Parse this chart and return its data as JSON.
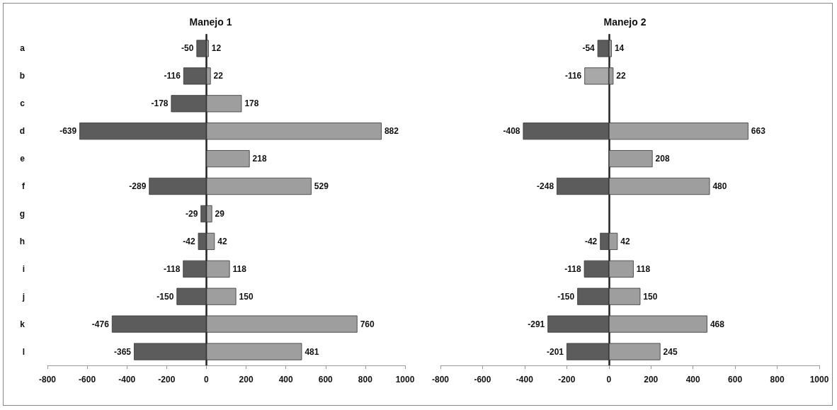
{
  "chart_data": [
    {
      "type": "bar",
      "title": "Manejo 1",
      "orientation": "horizontal",
      "stacked": true,
      "data_labels": true,
      "categories": [
        "a",
        "b",
        "c",
        "d",
        "e",
        "f",
        "g",
        "h",
        "i",
        "j",
        "k",
        "l"
      ],
      "series": [
        {
          "color": "#5c5c5c",
          "values": [
            -50,
            -116,
            -178,
            -639,
            null,
            -289,
            -29,
            -42,
            -118,
            -150,
            -476,
            -365
          ]
        },
        {
          "color": "#9e9e9e",
          "values": [
            12,
            22,
            178,
            882,
            218,
            529,
            29,
            42,
            118,
            150,
            760,
            481
          ]
        }
      ],
      "xlim": [
        -800,
        1000
      ],
      "xticks": [
        -800,
        -600,
        -400,
        -200,
        0,
        200,
        400,
        600,
        800,
        1000
      ]
    },
    {
      "type": "bar",
      "title": "Manejo 2",
      "orientation": "horizontal",
      "stacked": true,
      "data_labels": true,
      "tick_labels": "x",
      "categories": [
        null,
        null,
        null,
        null,
        null,
        null,
        null,
        null,
        null,
        null,
        null,
        null
      ],
      "series": [
        {
          "colors": [
            "#5c5c5c",
            "#a8a8a8",
            "#5c5c5c",
            "#5c5c5c",
            "#5c5c5c",
            "#5c5c5c",
            "#5c5c5c",
            "#5c5c5c",
            "#5c5c5c",
            "#5c5c5c",
            "#5c5c5c",
            "#5c5c5c"
          ],
          "values": [
            -54,
            -116,
            null,
            -408,
            null,
            -248,
            null,
            -42,
            -118,
            -150,
            -291,
            -201
          ]
        },
        {
          "color": "#9e9e9e",
          "values": [
            14,
            22,
            null,
            663,
            208,
            480,
            null,
            42,
            118,
            150,
            468,
            245
          ]
        }
      ],
      "xlim": [
        -800,
        1000
      ],
      "xticks": [
        -800,
        -600,
        -400,
        -200,
        0,
        200,
        400,
        600,
        800,
        1000
      ]
    }
  ]
}
